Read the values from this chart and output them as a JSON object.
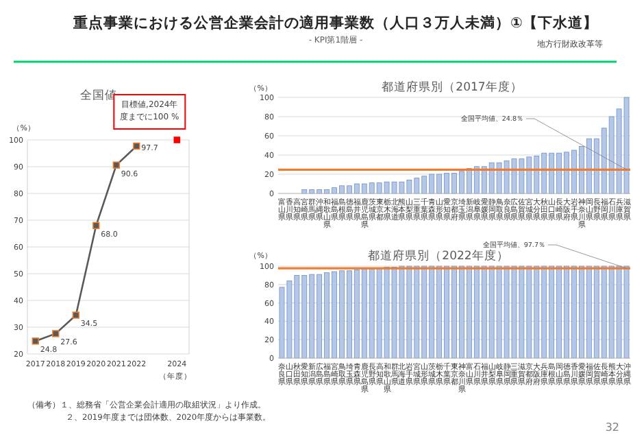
{
  "chart_data": [
    {
      "type": "line",
      "title": "全国値",
      "xlabel": "（年度）",
      "ylabel": "（%）",
      "xlim": [
        2016.6,
        2024.6
      ],
      "ylim": [
        20,
        100
      ],
      "xticks": [
        2017,
        2018,
        2019,
        2020,
        2021,
        2022,
        2024
      ],
      "yticks": [
        20,
        30,
        40,
        50,
        60,
        70,
        80,
        90,
        100
      ],
      "grid": "y",
      "marker": "square",
      "series": [
        {
          "x": [
            2017,
            2018,
            2019,
            2020,
            2021,
            2022
          ],
          "values": [
            24.8,
            27.6,
            34.5,
            68.0,
            90.6,
            97.7
          ],
          "color": "#595959",
          "value_labels": [
            "24.8",
            "27.6",
            "34.5",
            "68.0",
            "90.6",
            "97.7"
          ]
        },
        {
          "type": "scatter",
          "x": [
            2024
          ],
          "values": [
            100
          ],
          "color": "#ff0000"
        }
      ],
      "annotations": [
        {
          "text": "目標値,2024年度までに100 %",
          "x": 2024,
          "y": 100
        },
        "重点事業における公営企業会計の適用事業数（人口３万人未満）①【下水道】",
        "- KPI第1階層 -",
        "地方行財政改革等",
        "（備考）１、総務省「公営企業会計適用の取組状況」より作成。",
        "２、2019年度までは団体数、2020年度からは事業数。",
        "32"
      ]
    },
    {
      "type": "bar",
      "title": "都道府県別（2017年度）",
      "ylabel": "（%）",
      "ylim": [
        0,
        100
      ],
      "yticks": [
        0,
        20,
        40,
        60,
        80,
        100
      ],
      "grid": "y",
      "color": "#b4c7e7",
      "categories": [
        "富山県",
        "香川県",
        "高知県",
        "宮崎県",
        "群馬県",
        "沖縄県",
        "和歌山県",
        "福島県",
        "島根県",
        "徳島県",
        "福井県",
        "鹿児島県",
        "茨城県",
        "東京都",
        "栃木県",
        "北海道",
        "熊本県",
        "山梨県",
        "三重県",
        "千葉県",
        "青森県",
        "山形県",
        "愛知県",
        "京都府",
        "埼玉県",
        "新潟県",
        "岐阜県",
        "愛媛県",
        "静岡県",
        "鳥取県",
        "奈良県",
        "広島県",
        "佐賀県",
        "宮城県",
        "大分県",
        "秋田県",
        "山口県",
        "長崎県",
        "大阪府",
        "岩手県",
        "神奈川県",
        "岡山県",
        "長野県",
        "福岡県",
        "石川県",
        "兵庫県",
        "滋賀県"
      ],
      "values": [
        0,
        0,
        0,
        4,
        4,
        4,
        4,
        6,
        8,
        8,
        10,
        10,
        11,
        11,
        12,
        12,
        12,
        14,
        16,
        18,
        20,
        20,
        21,
        21,
        23,
        26,
        28,
        28,
        32,
        32,
        34,
        36,
        36,
        38,
        39,
        42,
        42,
        42,
        43,
        45,
        49,
        57,
        57,
        68,
        80,
        88,
        100
      ],
      "ref_lines": [
        {
          "axis": "y",
          "value": 24.8,
          "label": "全国平均値、24.8％",
          "color": "#ed7d31"
        }
      ]
    },
    {
      "type": "bar",
      "title": "都道府県別（2022年度）",
      "ylabel": "（%）",
      "ylim": [
        0,
        100
      ],
      "yticks": [
        0,
        20,
        40,
        60,
        80,
        100
      ],
      "grid": "y",
      "color": "#b4c7e7",
      "categories": [
        "奈良県",
        "山口県",
        "秋田県",
        "愛知県",
        "新潟県",
        "広島県",
        "福島県",
        "宮崎県",
        "鳥取県",
        "埼玉県",
        "青森県",
        "鹿児島県",
        "長野県",
        "高知県",
        "和歌山県",
        "群馬県",
        "北海道",
        "岩手県",
        "宮城県",
        "山形県",
        "茨城県",
        "栃木県",
        "千葉県",
        "東京都",
        "神奈川県",
        "富山県",
        "石川県",
        "福井県",
        "山梨県",
        "岐阜県",
        "静岡県",
        "三重県",
        "滋賀県",
        "京都府",
        "大阪府",
        "兵庫県",
        "島根県",
        "岡山県",
        "徳島県",
        "香川県",
        "愛媛県",
        "福岡県",
        "佐賀県",
        "長崎県",
        "熊本県",
        "大分県",
        "沖縄県"
      ],
      "values": [
        77,
        84,
        90,
        90,
        91,
        91,
        93,
        94,
        95,
        95,
        96,
        97,
        97,
        98,
        99,
        99,
        100,
        100,
        100,
        100,
        100,
        100,
        100,
        100,
        100,
        100,
        100,
        100,
        100,
        100,
        100,
        100,
        100,
        100,
        100,
        100,
        100,
        100,
        100,
        100,
        100,
        100,
        100,
        100,
        100,
        100,
        100
      ],
      "ref_lines": [
        {
          "axis": "y",
          "value": 97.7,
          "label": "全国平均値、97.7％",
          "color": "#ed7d31"
        }
      ]
    }
  ]
}
